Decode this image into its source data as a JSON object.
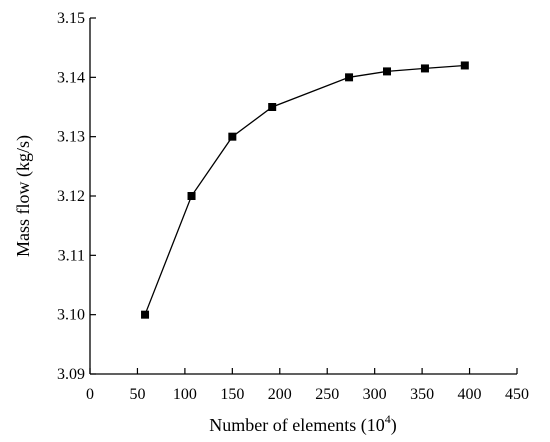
{
  "chart_data": {
    "type": "line",
    "title": "",
    "xlabel": "Number of elements (10",
    "xlabel_sup": "4",
    "xlabel_close": ")",
    "ylabel": "Mass flow (kg/s)",
    "xlim": [
      0,
      450
    ],
    "ylim": [
      3.09,
      3.15
    ],
    "x_ticks": [
      0,
      50,
      100,
      150,
      200,
      250,
      300,
      350,
      400,
      450
    ],
    "x_tick_labels": [
      "0",
      "50",
      "100",
      "150",
      "200",
      "250",
      "300",
      "350",
      "400",
      "450"
    ],
    "y_ticks": [
      3.09,
      3.1,
      3.11,
      3.12,
      3.13,
      3.14,
      3.15
    ],
    "y_tick_labels": [
      "3.09",
      "3.10",
      "3.11",
      "3.12",
      "3.13",
      "3.14",
      "3.15"
    ],
    "grid": false,
    "marker": "square",
    "line_color": "#000000",
    "marker_color": "#000000",
    "series": [
      {
        "x": [
          58,
          107,
          150,
          192,
          273,
          313,
          353,
          395
        ],
        "y": [
          3.1,
          3.12,
          3.13,
          3.135,
          3.14,
          3.141,
          3.1415,
          3.142
        ]
      }
    ]
  }
}
